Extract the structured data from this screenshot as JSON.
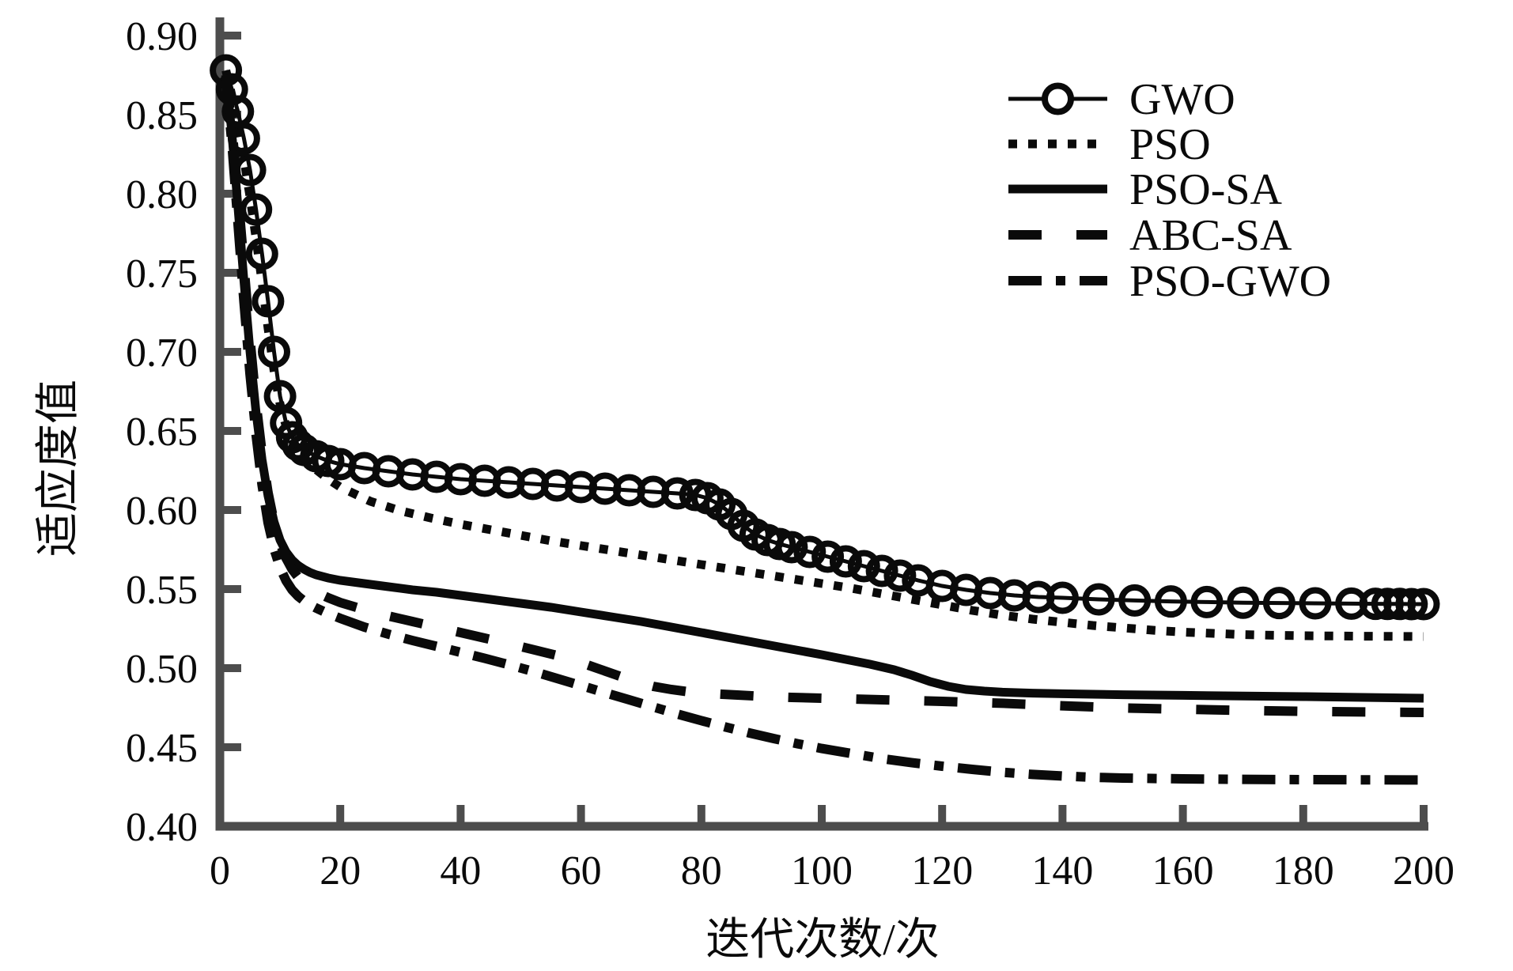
{
  "figure": {
    "background": "#ffffff",
    "axis_color": "#4d4d4d",
    "line_color": "#0a0a0a"
  },
  "chart_data": {
    "type": "line",
    "title": "",
    "xlabel": "迭代次数/次",
    "ylabel": "适应度值",
    "xlim": [
      0,
      200
    ],
    "ylim": [
      0.4,
      0.9
    ],
    "grid": false,
    "x_ticks": [
      "0",
      "20",
      "40",
      "60",
      "80",
      "100",
      "120",
      "140",
      "160",
      "180",
      "200"
    ],
    "y_ticks": [
      "0.40",
      "0.45",
      "0.50",
      "0.55",
      "0.60",
      "0.65",
      "0.70",
      "0.75",
      "0.80",
      "0.85",
      "0.90"
    ],
    "legend": {
      "position": "upper-right-inside",
      "frame": false
    },
    "series": [
      {
        "name": "GWO",
        "linestyle": "solid-thin",
        "marker": "circle",
        "points": [
          [
            1,
            0.878
          ],
          [
            2,
            0.866
          ],
          [
            3,
            0.852
          ],
          [
            4,
            0.835
          ],
          [
            5,
            0.815
          ],
          [
            6,
            0.79
          ],
          [
            7,
            0.762
          ],
          [
            8,
            0.732
          ],
          [
            9,
            0.7
          ],
          [
            10,
            0.672
          ],
          [
            11,
            0.655
          ],
          [
            12,
            0.646
          ],
          [
            13,
            0.641
          ],
          [
            14,
            0.638
          ],
          [
            16,
            0.634
          ],
          [
            18,
            0.631
          ],
          [
            20,
            0.629
          ],
          [
            24,
            0.6265
          ],
          [
            28,
            0.6245
          ],
          [
            32,
            0.6225
          ],
          [
            36,
            0.621
          ],
          [
            40,
            0.6195
          ],
          [
            44,
            0.6185
          ],
          [
            48,
            0.6175
          ],
          [
            52,
            0.6165
          ],
          [
            56,
            0.6155
          ],
          [
            60,
            0.6145
          ],
          [
            64,
            0.6135
          ],
          [
            68,
            0.6125
          ],
          [
            72,
            0.6115
          ],
          [
            76,
            0.6105
          ],
          [
            79,
            0.6095
          ],
          [
            81,
            0.6075
          ],
          [
            83,
            0.6035
          ],
          [
            85,
            0.5975
          ],
          [
            87,
            0.59
          ],
          [
            89,
            0.5845
          ],
          [
            91,
            0.581
          ],
          [
            93,
            0.5785
          ],
          [
            95,
            0.5765
          ],
          [
            98,
            0.5735
          ],
          [
            101,
            0.5705
          ],
          [
            104,
            0.5675
          ],
          [
            107,
            0.5645
          ],
          [
            110,
            0.5615
          ],
          [
            113,
            0.5585
          ],
          [
            116,
            0.5555
          ],
          [
            120,
            0.552
          ],
          [
            124,
            0.5495
          ],
          [
            128,
            0.5475
          ],
          [
            132,
            0.546
          ],
          [
            136,
            0.545
          ],
          [
            140,
            0.5445
          ],
          [
            146,
            0.5435
          ],
          [
            152,
            0.5428
          ],
          [
            158,
            0.5422
          ],
          [
            164,
            0.5418
          ],
          [
            170,
            0.5414
          ],
          [
            176,
            0.5412
          ],
          [
            182,
            0.541
          ],
          [
            188,
            0.5408
          ],
          [
            192,
            0.5407
          ],
          [
            194,
            0.5406
          ],
          [
            196,
            0.5406
          ],
          [
            198,
            0.5405
          ],
          [
            200,
            0.5405
          ]
        ]
      },
      {
        "name": "PSO",
        "linestyle": "dotted",
        "marker": "none",
        "points": [
          [
            1,
            0.878
          ],
          [
            2,
            0.862
          ],
          [
            3,
            0.843
          ],
          [
            4,
            0.822
          ],
          [
            5,
            0.798
          ],
          [
            6,
            0.772
          ],
          [
            7,
            0.744
          ],
          [
            8,
            0.715
          ],
          [
            9,
            0.688
          ],
          [
            10,
            0.667
          ],
          [
            11,
            0.653
          ],
          [
            12,
            0.644
          ],
          [
            14,
            0.633
          ],
          [
            16,
            0.6255
          ],
          [
            18,
            0.6195
          ],
          [
            20,
            0.6145
          ],
          [
            25,
            0.6055
          ],
          [
            30,
            0.5995
          ],
          [
            35,
            0.595
          ],
          [
            40,
            0.591
          ],
          [
            45,
            0.5875
          ],
          [
            50,
            0.584
          ],
          [
            55,
            0.5805
          ],
          [
            60,
            0.5775
          ],
          [
            65,
            0.5745
          ],
          [
            70,
            0.5715
          ],
          [
            75,
            0.5685
          ],
          [
            80,
            0.5655
          ],
          [
            85,
            0.5625
          ],
          [
            90,
            0.5595
          ],
          [
            95,
            0.5565
          ],
          [
            100,
            0.5535
          ],
          [
            105,
            0.5505
          ],
          [
            110,
            0.547
          ],
          [
            115,
            0.5435
          ],
          [
            120,
            0.54
          ],
          [
            125,
            0.5365
          ],
          [
            130,
            0.5335
          ],
          [
            135,
            0.531
          ],
          [
            140,
            0.529
          ],
          [
            145,
            0.527
          ],
          [
            150,
            0.5255
          ],
          [
            155,
            0.524
          ],
          [
            160,
            0.5228
          ],
          [
            165,
            0.522
          ],
          [
            170,
            0.5212
          ],
          [
            175,
            0.5208
          ],
          [
            180,
            0.5205
          ],
          [
            190,
            0.5202
          ],
          [
            200,
            0.52
          ]
        ]
      },
      {
        "name": "PSO-SA",
        "linestyle": "solid",
        "marker": "none",
        "points": [
          [
            1,
            0.875
          ],
          [
            2,
            0.838
          ],
          [
            3,
            0.792
          ],
          [
            4,
            0.745
          ],
          [
            5,
            0.7
          ],
          [
            6,
            0.662
          ],
          [
            7,
            0.632
          ],
          [
            8,
            0.609
          ],
          [
            9,
            0.5925
          ],
          [
            10,
            0.581
          ],
          [
            11,
            0.5735
          ],
          [
            12,
            0.5685
          ],
          [
            13,
            0.565
          ],
          [
            14,
            0.5625
          ],
          [
            15,
            0.5605
          ],
          [
            16,
            0.559
          ],
          [
            18,
            0.557
          ],
          [
            20,
            0.5555
          ],
          [
            24,
            0.5535
          ],
          [
            28,
            0.5515
          ],
          [
            32,
            0.5495
          ],
          [
            36,
            0.548
          ],
          [
            40,
            0.546
          ],
          [
            45,
            0.5435
          ],
          [
            50,
            0.541
          ],
          [
            55,
            0.5385
          ],
          [
            60,
            0.5355
          ],
          [
            65,
            0.5325
          ],
          [
            70,
            0.5295
          ],
          [
            75,
            0.526
          ],
          [
            80,
            0.5225
          ],
          [
            85,
            0.519
          ],
          [
            90,
            0.5155
          ],
          [
            95,
            0.512
          ],
          [
            100,
            0.5085
          ],
          [
            104,
            0.5055
          ],
          [
            108,
            0.5025
          ],
          [
            112,
            0.499
          ],
          [
            115,
            0.4955
          ],
          [
            118,
            0.4915
          ],
          [
            121,
            0.4885
          ],
          [
            124,
            0.4865
          ],
          [
            127,
            0.4855
          ],
          [
            130,
            0.4848
          ],
          [
            135,
            0.4842
          ],
          [
            140,
            0.4838
          ],
          [
            150,
            0.4832
          ],
          [
            160,
            0.4828
          ],
          [
            170,
            0.4824
          ],
          [
            180,
            0.482
          ],
          [
            190,
            0.4815
          ],
          [
            200,
            0.481
          ]
        ]
      },
      {
        "name": "ABC-SA",
        "linestyle": "dashed",
        "marker": "none",
        "points": [
          [
            1,
            0.875
          ],
          [
            2,
            0.842
          ],
          [
            3,
            0.8
          ],
          [
            4,
            0.755
          ],
          [
            5,
            0.708
          ],
          [
            6,
            0.668
          ],
          [
            7,
            0.636
          ],
          [
            8,
            0.611
          ],
          [
            9,
            0.5925
          ],
          [
            10,
            0.579
          ],
          [
            11,
            0.5695
          ],
          [
            12,
            0.5625
          ],
          [
            13,
            0.5575
          ],
          [
            14,
            0.5535
          ],
          [
            15,
            0.5505
          ],
          [
            16,
            0.548
          ],
          [
            18,
            0.5445
          ],
          [
            20,
            0.5415
          ],
          [
            24,
            0.537
          ],
          [
            28,
            0.533
          ],
          [
            32,
            0.5295
          ],
          [
            36,
            0.526
          ],
          [
            40,
            0.5225
          ],
          [
            44,
            0.519
          ],
          [
            48,
            0.5155
          ],
          [
            52,
            0.5118
          ],
          [
            56,
            0.508
          ],
          [
            60,
            0.5035
          ],
          [
            63,
            0.4995
          ],
          [
            66,
            0.4955
          ],
          [
            69,
            0.4915
          ],
          [
            72,
            0.4885
          ],
          [
            75,
            0.4865
          ],
          [
            78,
            0.485
          ],
          [
            82,
            0.4838
          ],
          [
            86,
            0.483
          ],
          [
            90,
            0.4822
          ],
          [
            95,
            0.4815
          ],
          [
            100,
            0.481
          ],
          [
            110,
            0.48
          ],
          [
            120,
            0.479
          ],
          [
            130,
            0.4778
          ],
          [
            140,
            0.4762
          ],
          [
            150,
            0.4748
          ],
          [
            160,
            0.474
          ],
          [
            170,
            0.4733
          ],
          [
            180,
            0.4727
          ],
          [
            190,
            0.4723
          ],
          [
            200,
            0.472
          ]
        ]
      },
      {
        "name": "PSO-GWO",
        "linestyle": "dashdot",
        "marker": "none",
        "points": [
          [
            1,
            0.872
          ],
          [
            2,
            0.832
          ],
          [
            3,
            0.782
          ],
          [
            4,
            0.732
          ],
          [
            5,
            0.686
          ],
          [
            6,
            0.648
          ],
          [
            7,
            0.616
          ],
          [
            8,
            0.592
          ],
          [
            9,
            0.5755
          ],
          [
            10,
            0.5635
          ],
          [
            11,
            0.5553
          ],
          [
            12,
            0.5495
          ],
          [
            13,
            0.5455
          ],
          [
            14,
            0.5425
          ],
          [
            15,
            0.54
          ],
          [
            16,
            0.538
          ],
          [
            18,
            0.5345
          ],
          [
            20,
            0.5315
          ],
          [
            24,
            0.526
          ],
          [
            28,
            0.5215
          ],
          [
            32,
            0.5175
          ],
          [
            36,
            0.5138
          ],
          [
            40,
            0.51
          ],
          [
            44,
            0.5062
          ],
          [
            48,
            0.5022
          ],
          [
            52,
            0.498
          ],
          [
            56,
            0.4935
          ],
          [
            60,
            0.489
          ],
          [
            64,
            0.4845
          ],
          [
            68,
            0.48
          ],
          [
            72,
            0.4755
          ],
          [
            76,
            0.471
          ],
          [
            80,
            0.4668
          ],
          [
            84,
            0.4628
          ],
          [
            88,
            0.459
          ],
          [
            92,
            0.4555
          ],
          [
            96,
            0.4522
          ],
          [
            100,
            0.4492
          ],
          [
            105,
            0.446
          ],
          [
            110,
            0.4428
          ],
          [
            115,
            0.4402
          ],
          [
            120,
            0.438
          ],
          [
            125,
            0.436
          ],
          [
            130,
            0.4342
          ],
          [
            135,
            0.4328
          ],
          [
            140,
            0.4318
          ],
          [
            145,
            0.431
          ],
          [
            150,
            0.4305
          ],
          [
            160,
            0.43
          ],
          [
            170,
            0.4297
          ],
          [
            180,
            0.4295
          ],
          [
            190,
            0.4294
          ],
          [
            200,
            0.4293
          ]
        ]
      }
    ]
  }
}
